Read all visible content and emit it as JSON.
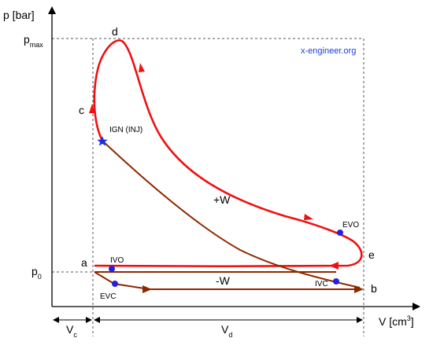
{
  "axes": {
    "y_label": "p [bar]",
    "x_label_main": "V [cm",
    "x_label_sup": "3",
    "x_label_end": "]",
    "p_max_main": "p",
    "p_max_sub": "max",
    "p0_main": "p",
    "p0_sub": "0",
    "vc_main": "V",
    "vc_sub": "c",
    "vd_main": "V",
    "vd_sub": "d"
  },
  "points": {
    "a": "a",
    "b": "b",
    "c": "c",
    "d": "d",
    "e": "e"
  },
  "markers": {
    "ign": "IGN (INJ)",
    "ivo": "IVO",
    "ivc": "IVC",
    "evo": "EVO",
    "evc": "EVC"
  },
  "areas": {
    "positive_work": "+W",
    "negative_work": "-W"
  },
  "brand": "x-engineer.org",
  "colors": {
    "high_pressure_loop": "#ee1111",
    "low_pressure_loop": "#8b2a00",
    "valve_marker": "#2222dd",
    "ignition_marker": "#1a2fe0",
    "brand": "#1a3fd6"
  }
}
